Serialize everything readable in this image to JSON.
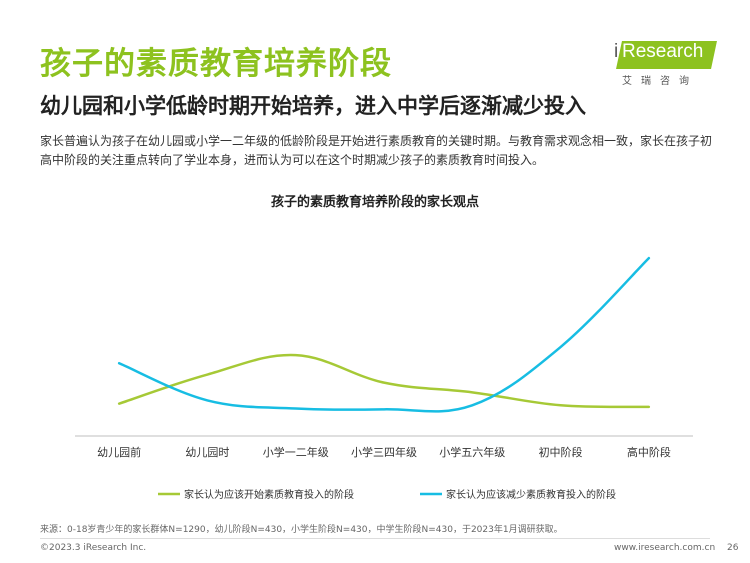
{
  "header": {
    "title": "孩子的素质教育培养阶段",
    "subtitle": "幼儿园和小学低龄时期开始培养，进入中学后逐渐减少投入",
    "description": "家长普遍认为孩子在幼儿园或小学一二年级的低龄阶段是开始进行素质教育的关键时期。与教育需求观念相一致，家长在孩子初高中阶段的关注重点转向了学业本身，进而认为可以在这个时期减少孩子的素质教育时间投入。"
  },
  "logo": {
    "i": "i",
    "word": "Research",
    "cn": "艾瑞咨询"
  },
  "chart_data": {
    "type": "line",
    "title": "孩子的素质教育培养阶段的家长观点",
    "categories": [
      "幼儿园前",
      "幼儿园时",
      "小学一二年级",
      "小学三四年级",
      "小学五六年级",
      "初中阶段",
      "高中阶段"
    ],
    "series": [
      {
        "name": "家长认为应该开始素质教育投入的阶段",
        "color": "#a6c936",
        "values": [
          10,
          28,
          40,
          23,
          17,
          9,
          8
        ]
      },
      {
        "name": "家长认为应该减少素质教育投入的阶段",
        "color": "#17bde3",
        "values": [
          35,
          12,
          7,
          6.5,
          9,
          45,
          100
        ]
      }
    ],
    "ylim": [
      -10,
      105
    ],
    "grid": false,
    "legend": "bottom"
  },
  "footer": {
    "source": "来源：0-18岁青少年的家长群体N=1290，幼儿阶段N=430，小学生阶段N=430，中学生阶段N=430，于2023年1月调研获取。",
    "copyright": "©2023.3 iResearch Inc.",
    "website": "www.iresearch.com.cn",
    "page": "26"
  }
}
